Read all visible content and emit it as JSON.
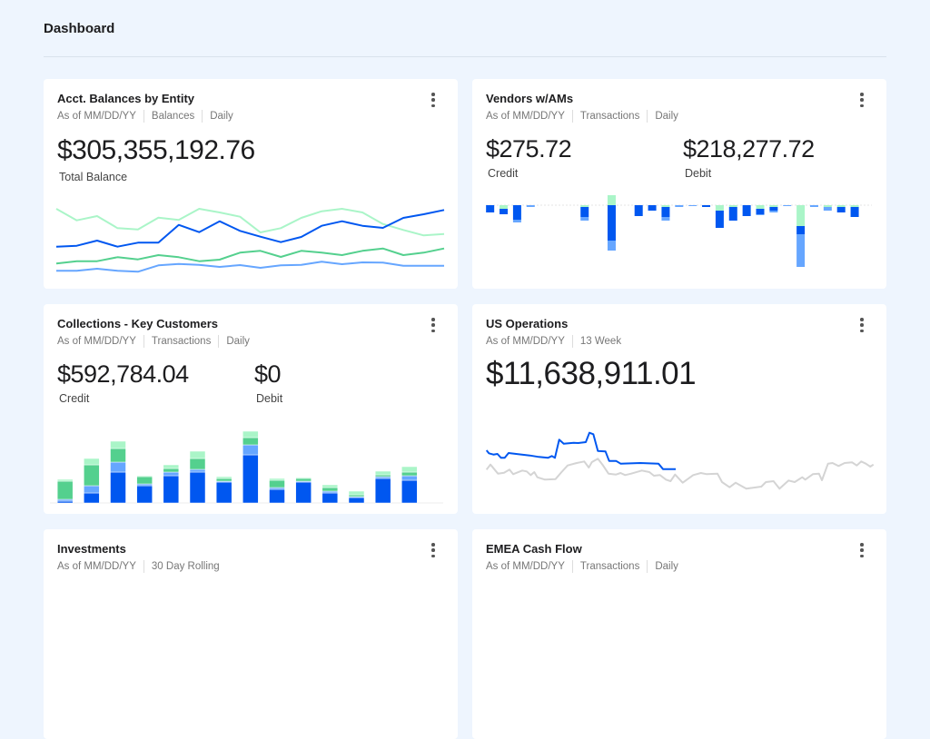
{
  "header": {
    "title": "Dashboard"
  },
  "cards": [
    {
      "title": "Acct. Balances by Entity",
      "meta": [
        "As of MM/DD/YY",
        "Balances",
        "Daily"
      ],
      "value": "$305,355,192.76",
      "value_label": "Total Balance"
    },
    {
      "title": "Vendors w/AMs",
      "meta": [
        "As of MM/DD/YY",
        "Transactions",
        "Daily"
      ],
      "credit": "$275.72",
      "credit_label": "Credit",
      "debit": "$218,277.72",
      "debit_label": "Debit"
    },
    {
      "title": "Collections - Key Customers",
      "meta": [
        "As of MM/DD/YY",
        "Transactions",
        "Daily"
      ],
      "credit": "$592,784.04",
      "credit_label": "Credit",
      "debit": "$0",
      "debit_label": "Debit"
    },
    {
      "title": "US Operations",
      "meta": [
        "As of MM/DD/YY",
        "13 Week"
      ],
      "value": "$11,638,911.01"
    },
    {
      "title": "Investments",
      "meta": [
        "As of MM/DD/YY",
        "30 Day Rolling"
      ]
    },
    {
      "title": "EMEA Cash Flow",
      "meta": [
        "As of MM/DD/YY",
        "Transactions",
        "Daily"
      ]
    }
  ],
  "colors": {
    "blue": "#0057f0",
    "lightblue": "#66a6ff",
    "green": "#54d08e",
    "lightgreen": "#aaf5c8",
    "gray": "#d4d4d4"
  },
  "chart_data": [
    {
      "type": "line",
      "title": "Acct. Balances by Entity",
      "ylim": [
        0,
        300
      ],
      "series": [
        {
          "name": "lightgreen",
          "values": [
            240,
            202,
            216,
            176,
            172,
            211,
            203,
            240,
            228,
            214,
            162,
            176,
            210,
            232,
            240,
            228,
            190,
            170,
            152,
            157
          ]
        },
        {
          "name": "blue",
          "values": [
            115,
            118,
            135,
            115,
            128,
            128,
            187,
            163,
            199,
            167,
            148,
            130,
            147,
            184,
            199,
            184,
            177,
            210,
            222,
            236
          ]
        },
        {
          "name": "green",
          "values": [
            59,
            67,
            67,
            80,
            73,
            87,
            80,
            67,
            72,
            95,
            101,
            81,
            101,
            95,
            87,
            101,
            109,
            87,
            95,
            109
          ]
        },
        {
          "name": "lightblue",
          "values": [
            35,
            35,
            42,
            35,
            32,
            53,
            58,
            55,
            48,
            54,
            45,
            53,
            55,
            65,
            57,
            63,
            62,
            52,
            52,
            52
          ]
        }
      ]
    },
    {
      "type": "bar",
      "stacked": true,
      "title": "Vendors w/AMs",
      "bars": [
        {
          "pos": 0,
          "neg": [
            8,
            0,
            0
          ]
        },
        {
          "pos": 0,
          "neg": [
            6,
            0,
            4
          ]
        },
        {
          "pos": 0,
          "neg": [
            16,
            3,
            0
          ]
        },
        {
          "pos": 0,
          "neg": [
            0,
            2,
            0
          ]
        },
        {
          "pos": 0,
          "neg": [
            0,
            0,
            0
          ]
        },
        {
          "pos": 0,
          "neg": [
            0,
            0,
            0
          ]
        },
        {
          "pos": 0,
          "neg": [
            0,
            0,
            0
          ]
        },
        {
          "pos": 0,
          "neg": [
            11,
            4,
            2
          ]
        },
        {
          "pos": 0,
          "neg": [
            0,
            0,
            0
          ]
        },
        {
          "pos": 11,
          "neg": [
            39,
            11,
            0
          ]
        },
        {
          "pos": 0,
          "neg": [
            0,
            0,
            0
          ]
        },
        {
          "pos": 0,
          "neg": [
            12,
            0,
            0
          ]
        },
        {
          "pos": 0,
          "neg": [
            6,
            0,
            0
          ]
        },
        {
          "pos": 0,
          "neg": [
            11,
            4,
            2
          ]
        },
        {
          "pos": 0,
          "neg": [
            0,
            2,
            0
          ]
        },
        {
          "pos": 0,
          "neg": [
            0,
            1,
            0
          ]
        },
        {
          "pos": 0,
          "neg": [
            2,
            0,
            0
          ]
        },
        {
          "pos": 0,
          "neg": [
            19,
            0,
            6
          ]
        },
        {
          "pos": 0,
          "neg": [
            15,
            0,
            2
          ]
        },
        {
          "pos": 0,
          "neg": [
            12,
            0,
            0
          ]
        },
        {
          "pos": 0,
          "neg": [
            6,
            1,
            4
          ]
        },
        {
          "pos": 0,
          "neg": [
            4,
            2,
            2
          ]
        },
        {
          "pos": 0,
          "neg": [
            0,
            1,
            0
          ]
        },
        {
          "pos": 0,
          "neg": [
            9,
            36,
            23
          ]
        },
        {
          "pos": 0,
          "neg": [
            0,
            2,
            0
          ]
        },
        {
          "pos": 0,
          "neg": [
            0,
            4,
            2
          ]
        },
        {
          "pos": 0,
          "neg": [
            6,
            0,
            2
          ]
        },
        {
          "pos": 0,
          "neg": [
            11,
            0,
            2
          ]
        }
      ]
    },
    {
      "type": "bar",
      "stacked": true,
      "title": "Collections - Key Customers",
      "series_order": [
        "blue",
        "lightblue",
        "green",
        "lightgreen"
      ],
      "bars": [
        [
          2,
          2,
          20,
          2
        ],
        [
          11,
          8,
          23,
          7
        ],
        [
          34,
          11,
          15,
          8
        ],
        [
          19,
          2,
          8,
          1
        ],
        [
          30,
          4,
          4,
          4
        ],
        [
          34,
          3,
          12,
          8
        ],
        [
          23,
          1,
          3,
          2
        ],
        [
          53,
          11,
          8,
          7
        ],
        [
          15,
          2,
          8,
          2
        ],
        [
          23,
          1,
          3,
          1
        ],
        [
          11,
          2,
          4,
          3
        ],
        [
          6,
          1,
          2,
          4
        ],
        [
          27,
          2,
          2,
          4
        ],
        [
          25,
          5,
          4,
          6
        ]
      ]
    },
    {
      "type": "line",
      "title": "US Operations",
      "xlim": [
        0,
        1320
      ],
      "ylim": [
        0,
        300
      ],
      "series": [
        {
          "name": "blue",
          "points": [
            [
              32,
              192
            ],
            [
              40,
              182
            ],
            [
              55,
              178
            ],
            [
              68,
              180
            ],
            [
              80,
              167
            ],
            [
              92,
              167
            ],
            [
              105,
              183
            ],
            [
              130,
              180
            ],
            [
              175,
              175
            ],
            [
              205,
              170
            ],
            [
              235,
              167
            ],
            [
              248,
              173
            ],
            [
              258,
              167
            ],
            [
              272,
              227
            ],
            [
              287,
              214
            ],
            [
              320,
              217
            ],
            [
              335,
              216
            ],
            [
              360,
              219
            ],
            [
              372,
              250
            ],
            [
              385,
              245
            ],
            [
              400,
              190
            ],
            [
              425,
              188
            ],
            [
              437,
              157
            ],
            [
              460,
              157
            ],
            [
              475,
              148
            ],
            [
              540,
              150
            ],
            [
              600,
              148
            ],
            [
              615,
              130
            ],
            [
              657,
              130
            ]
          ]
        },
        {
          "name": "gray",
          "points": [
            [
              32,
              128
            ],
            [
              45,
              145
            ],
            [
              70,
              115
            ],
            [
              90,
              118
            ],
            [
              108,
              128
            ],
            [
              120,
              113
            ],
            [
              150,
              125
            ],
            [
              165,
              122
            ],
            [
              178,
              110
            ],
            [
              190,
              120
            ],
            [
              200,
              103
            ],
            [
              225,
              95
            ],
            [
              260,
              97
            ],
            [
              280,
              120
            ],
            [
              300,
              142
            ],
            [
              330,
              150
            ],
            [
              355,
              155
            ],
            [
              370,
              135
            ],
            [
              380,
              153
            ],
            [
              400,
              164
            ],
            [
              415,
              145
            ],
            [
              435,
              115
            ],
            [
              460,
              112
            ],
            [
              475,
              117
            ],
            [
              490,
              110
            ],
            [
              510,
              115
            ],
            [
              545,
              125
            ],
            [
              570,
              120
            ],
            [
              585,
              108
            ],
            [
              605,
              110
            ],
            [
              625,
              95
            ],
            [
              640,
              90
            ],
            [
              655,
              112
            ],
            [
              680,
              85
            ],
            [
              715,
              110
            ],
            [
              740,
              117
            ],
            [
              760,
              113
            ],
            [
              795,
              115
            ],
            [
              810,
              87
            ],
            [
              835,
              70
            ],
            [
              855,
              85
            ],
            [
              890,
              65
            ],
            [
              940,
              72
            ],
            [
              955,
              87
            ],
            [
              980,
              90
            ],
            [
              1000,
              65
            ],
            [
              1030,
              92
            ],
            [
              1050,
              87
            ],
            [
              1075,
              103
            ],
            [
              1085,
              95
            ],
            [
              1110,
              113
            ],
            [
              1130,
              115
            ],
            [
              1140,
              93
            ],
            [
              1160,
              148
            ],
            [
              1175,
              150
            ],
            [
              1195,
              140
            ],
            [
              1215,
              150
            ],
            [
              1240,
              152
            ],
            [
              1255,
              142
            ],
            [
              1270,
              155
            ],
            [
              1285,
              148
            ],
            [
              1300,
              138
            ],
            [
              1310,
              145
            ]
          ]
        }
      ]
    }
  ]
}
